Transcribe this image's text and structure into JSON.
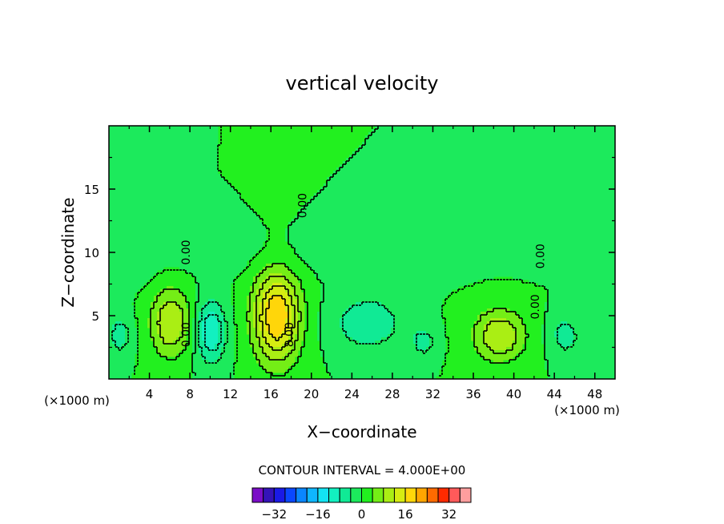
{
  "chart_data": {
    "type": "heatmap",
    "title": "vertical velocity",
    "xlabel": "X−coordinate",
    "ylabel": "Z−coordinate",
    "x_units_left": "(×1000 m)",
    "x_units_right": "(×1000 m)",
    "xlim": [
      0,
      50
    ],
    "ylim": [
      0,
      20
    ],
    "x_ticks": [
      4,
      8,
      12,
      16,
      20,
      24,
      28,
      32,
      36,
      40,
      44,
      48
    ],
    "y_ticks": [
      5,
      10,
      15
    ],
    "contour_interval_text": "CONTOUR INTERVAL = 4.000E+00",
    "contour_interval": 4,
    "background_value": 0,
    "colorbar": {
      "levels": [
        -36,
        -32,
        -28,
        -24,
        -20,
        -16,
        -12,
        -8,
        -4,
        0,
        4,
        8,
        12,
        16,
        20,
        24,
        28,
        32,
        36
      ],
      "tick_values": [
        -32,
        -16,
        0,
        16,
        32
      ],
      "tick_labels": [
        "−32",
        "−16",
        "0",
        "16",
        "32"
      ],
      "colors": [
        "#7a0dc7",
        "#3413b8",
        "#1a1ae6",
        "#0a47ff",
        "#0a86ff",
        "#0fb6ff",
        "#13e3f2",
        "#12f0c0",
        "#10ea95",
        "#1cea5c",
        "#22f01f",
        "#74ee16",
        "#aaee14",
        "#d6ec12",
        "#ffd60a",
        "#ffa500",
        "#ff6a00",
        "#ff2a00",
        "#ff5a5a",
        "#ff9e9e"
      ]
    },
    "contour_labels": [
      {
        "text": "0.00",
        "x": 8.0,
        "z": 10.0
      },
      {
        "text": "0.00",
        "x": 8.0,
        "z": 3.5
      },
      {
        "text": "0.00",
        "x": 19.5,
        "z": 13.7
      },
      {
        "text": "8.00",
        "x": 18.2,
        "z": 3.5
      },
      {
        "text": "0.00",
        "x": 43.0,
        "z": 9.7
      },
      {
        "text": "0.00",
        "x": 42.5,
        "z": 5.7
      }
    ],
    "features": [
      {
        "x": 6.0,
        "z": 4.5,
        "rx": 2.5,
        "rz": 3.4,
        "peak": 12
      },
      {
        "x": 10.0,
        "z": 3.8,
        "rx": 1.8,
        "rz": 3.0,
        "peak": -12
      },
      {
        "x": 16.5,
        "z": 5.0,
        "rx": 2.9,
        "rz": 4.6,
        "peak": 20
      },
      {
        "x": 25.5,
        "z": 4.5,
        "rx": 4.0,
        "rz": 2.5,
        "peak": -8
      },
      {
        "x": 31.0,
        "z": 3.0,
        "rx": 1.5,
        "rz": 1.4,
        "peak": -6
      },
      {
        "x": 38.5,
        "z": 3.5,
        "rx": 3.2,
        "rz": 2.6,
        "peak": 12
      },
      {
        "x": 45.0,
        "z": 3.5,
        "rx": 1.8,
        "rz": 2.0,
        "peak": -6
      },
      {
        "x": 1.0,
        "z": 3.5,
        "rx": 1.5,
        "rz": 2.0,
        "peak": -6
      },
      {
        "x": 2.5,
        "z": 11.0,
        "rx": 3.0,
        "rz": 4.0,
        "peak": -2
      },
      {
        "x": 15.0,
        "z": 10.0,
        "rx": 25.0,
        "rz": 2.2,
        "peak": -1.5
      },
      {
        "x": 48.5,
        "z": 3.0,
        "rx": 1.2,
        "rz": 1.2,
        "peak": -4
      }
    ]
  }
}
